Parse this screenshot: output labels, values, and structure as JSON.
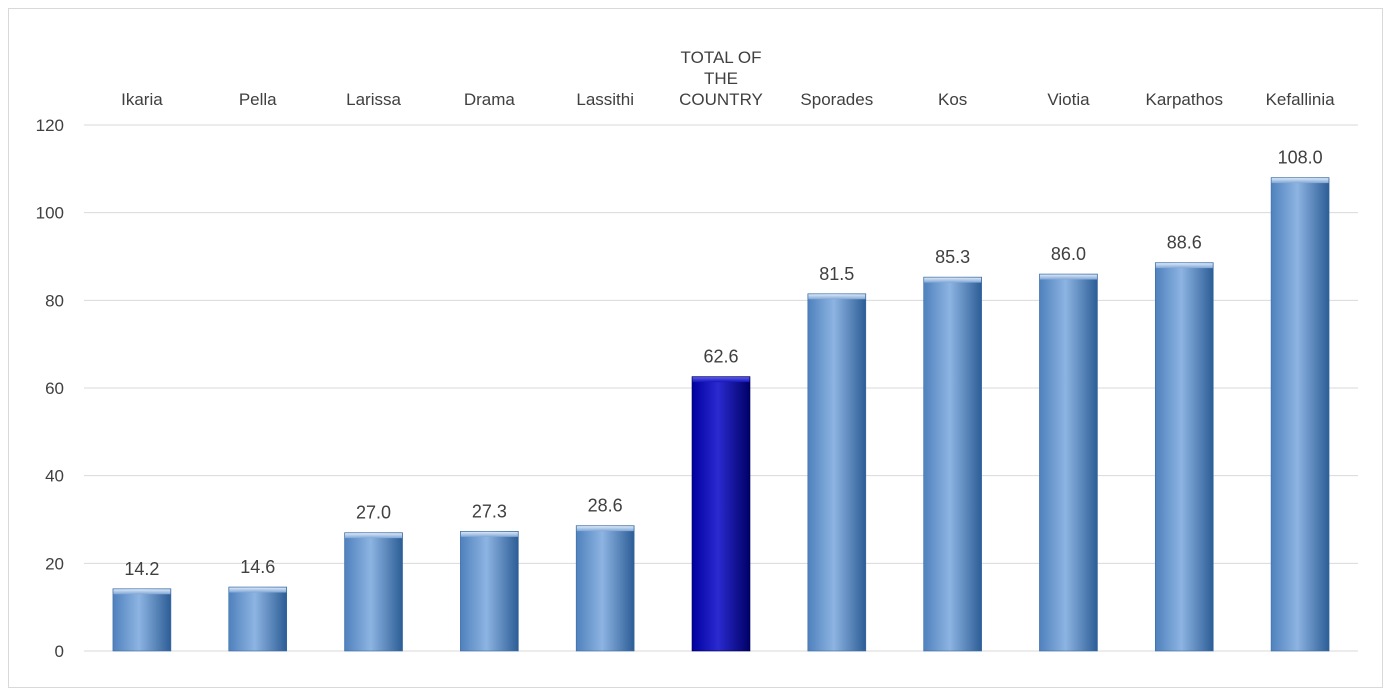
{
  "chart_data": {
    "type": "bar",
    "categories": [
      "Ikaria",
      "Pella",
      "Larissa",
      "Drama",
      "Lassithi",
      "TOTAL OF THE COUNTRY",
      "Sporades",
      "Kos",
      "Viotia",
      "Karpathos",
      "Kefallinia"
    ],
    "category_lines": [
      [
        "Ikaria"
      ],
      [
        "Pella"
      ],
      [
        "Larissa"
      ],
      [
        "Drama"
      ],
      [
        "Lassithi"
      ],
      [
        "TOTAL OF",
        "THE",
        "COUNTRY"
      ],
      [
        "Sporades"
      ],
      [
        "Kos"
      ],
      [
        "Viotia"
      ],
      [
        "Karpathos"
      ],
      [
        "Kefallinia"
      ]
    ],
    "values": [
      14.2,
      14.6,
      27.0,
      27.3,
      28.6,
      62.6,
      81.5,
      85.3,
      86.0,
      88.6,
      108.0
    ],
    "value_labels": [
      "14.2",
      "14.6",
      "27.0",
      "27.3",
      "28.6",
      "62.6",
      "81.5",
      "85.3",
      "86.0",
      "88.6",
      "108.0"
    ],
    "highlight_category": "TOTAL OF THE COUNTRY",
    "yticks": [
      "0",
      "20",
      "40",
      "60",
      "80",
      "100",
      "120"
    ],
    "ylim": [
      0,
      120
    ],
    "grid": true,
    "xlabel": "",
    "ylabel": "",
    "title": "",
    "category_label_position": "top",
    "colors": {
      "bar_light": "#8db4e2",
      "bar_mid": "#4f81bd",
      "bar_dark": "#2c5d96",
      "highlight_light": "#2a2ad0",
      "highlight_mid": "#0000a0",
      "highlight_dark": "#000066",
      "grid": "#d9d9d9",
      "text": "#404040"
    }
  }
}
